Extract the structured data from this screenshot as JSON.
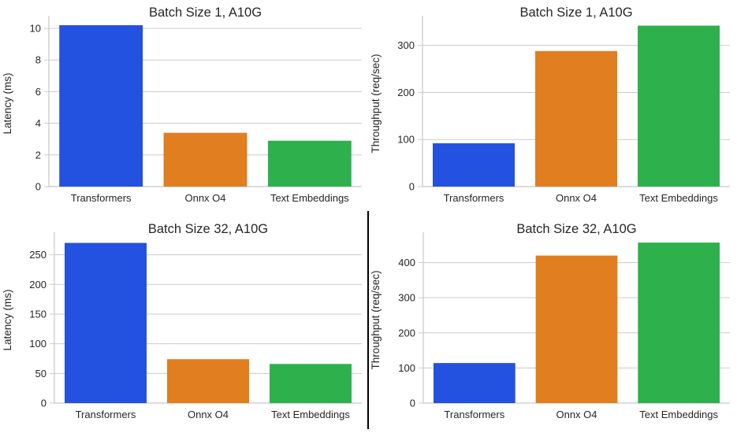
{
  "style": {
    "background": "#ffffff",
    "grid_color": "#cccccc",
    "spine_color": "#c8c8c8",
    "text_color": "#262626",
    "divider_color": "#000000",
    "bar_palette": {
      "blue": "#2351e0",
      "orange": "#e07e20",
      "green": "#2eb14c"
    }
  },
  "divider": {
    "present": true,
    "orientation": "vertical",
    "position": "between bottom-left and bottom-right charts"
  },
  "chart_data": [
    {
      "type": "bar",
      "title": "Batch Size 1, A10G",
      "xlabel": "",
      "ylabel": "Latency (ms)",
      "categories": [
        "Transformers",
        "Onnx O4",
        "Text Embeddings"
      ],
      "values": [
        10.2,
        3.4,
        2.9
      ],
      "yticks": [
        0,
        2,
        4,
        6,
        8,
        10
      ],
      "ylim": [
        0,
        10.5
      ],
      "colors": [
        "#2351e0",
        "#e07e20",
        "#2eb14c"
      ],
      "grid": true,
      "legend": null
    },
    {
      "type": "bar",
      "title": "Batch Size 1, A10G",
      "xlabel": "",
      "ylabel": "Throughput (req/sec)",
      "categories": [
        "Transformers",
        "Onnx O4",
        "Text Embeddings"
      ],
      "values": [
        92,
        288,
        342
      ],
      "yticks": [
        0,
        100,
        200,
        300
      ],
      "ylim": [
        0,
        353
      ],
      "colors": [
        "#2351e0",
        "#e07e20",
        "#2eb14c"
      ],
      "grid": true,
      "legend": null
    },
    {
      "type": "bar",
      "title": "Batch Size 32, A10G",
      "xlabel": "",
      "ylabel": "Latency (ms)",
      "categories": [
        "Transformers",
        "Onnx O4",
        "Text Embeddings"
      ],
      "values": [
        270,
        74,
        66
      ],
      "yticks": [
        0,
        50,
        100,
        150,
        200,
        250
      ],
      "ylim": [
        0,
        280
      ],
      "colors": [
        "#2351e0",
        "#e07e20",
        "#2eb14c"
      ],
      "grid": true,
      "legend": null
    },
    {
      "type": "bar",
      "title": "Batch Size 32, A10G",
      "xlabel": "",
      "ylabel": "Throughput (req/sec)",
      "categories": [
        "Transformers",
        "Onnx O4",
        "Text Embeddings"
      ],
      "values": [
        114,
        420,
        457
      ],
      "yticks": [
        0,
        100,
        200,
        300,
        400
      ],
      "ylim": [
        0,
        473
      ],
      "colors": [
        "#2351e0",
        "#e07e20",
        "#2eb14c"
      ],
      "grid": true,
      "legend": null
    }
  ]
}
